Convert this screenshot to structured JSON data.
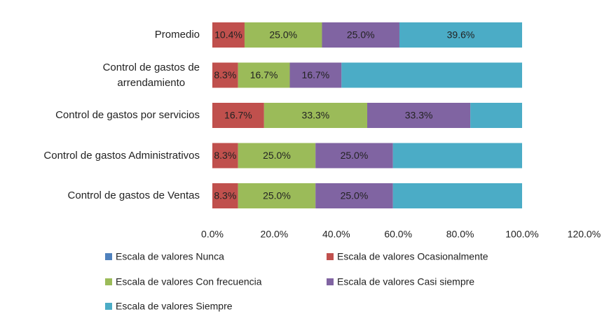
{
  "chart_data": {
    "type": "stacked_barh",
    "categories": [
      "Promedio",
      "Control de gastos de\narrendamiento",
      "Control de gastos por servicios",
      "Control de gastos Administrativos",
      "Control de gastos de Ventas"
    ],
    "series": [
      {
        "name": "Escala de valores Nunca",
        "color": "#4f81bd",
        "values": [
          0,
          0,
          0,
          0,
          0
        ]
      },
      {
        "name": "Escala de valores Ocasionalmente",
        "color": "#c0504d",
        "values": [
          10.4,
          8.3,
          16.7,
          8.3,
          8.3
        ],
        "value_labels": [
          "10.4%",
          "8.3%",
          "16.7%",
          "8.3%",
          "8.3%"
        ]
      },
      {
        "name": "Escala de valores Con frecuencia",
        "color": "#9bbb59",
        "values": [
          25.0,
          16.7,
          33.3,
          25.0,
          25.0
        ],
        "value_labels": [
          "25.0%",
          "16.7%",
          "33.3%",
          "25.0%",
          "25.0%"
        ]
      },
      {
        "name": "Escala de valores Casi siempre",
        "color": "#8064a2",
        "values": [
          25.0,
          16.7,
          33.3,
          25.0,
          25.0
        ],
        "value_labels": [
          "25.0%",
          "16.7%",
          "33.3%",
          "25.0%",
          "25.0%"
        ]
      },
      {
        "name": "Escala de valores Siempre",
        "color": "#4bacc6",
        "values": [
          39.6,
          58.3,
          16.7,
          41.7,
          41.7
        ],
        "value_labels": [
          "39.6%",
          null,
          null,
          null,
          null
        ]
      }
    ],
    "xlim": [
      0,
      120
    ],
    "xticks": [
      {
        "value": 0,
        "label": "0.0%"
      },
      {
        "value": 20,
        "label": "20.0%"
      },
      {
        "value": 40,
        "label": "40.0%"
      },
      {
        "value": 60,
        "label": "60.0%"
      },
      {
        "value": 80,
        "label": "80.0%"
      },
      {
        "value": 100,
        "label": "100.0%"
      },
      {
        "value": 120,
        "label": "120.0%"
      }
    ],
    "grid": false
  }
}
